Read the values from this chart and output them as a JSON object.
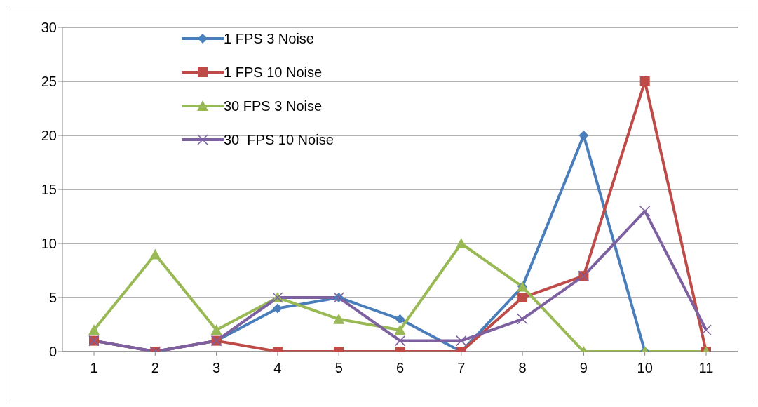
{
  "chart_data": {
    "type": "line",
    "categories": [
      "1",
      "2",
      "3",
      "4",
      "5",
      "6",
      "7",
      "8",
      "9",
      "10",
      "11"
    ],
    "series": [
      {
        "name": "1 FPS 3 Noise",
        "color": "#4a7ebb",
        "marker": "diamond",
        "values": [
          1,
          0,
          1,
          4,
          5,
          3,
          0,
          6,
          20,
          0,
          null
        ]
      },
      {
        "name": "1 FPS 10 Noise",
        "color": "#be4b48",
        "marker": "square",
        "values": [
          1,
          0,
          1,
          0,
          0,
          0,
          0,
          5,
          7,
          25,
          0
        ]
      },
      {
        "name": "30 FPS 3 Noise",
        "color": "#98b954",
        "marker": "triangle",
        "values": [
          2,
          9,
          2,
          5,
          3,
          2,
          10,
          6,
          0,
          0,
          0
        ]
      },
      {
        "name": "30  FPS 10 Noise",
        "color": "#7d60a0",
        "marker": "cross",
        "values": [
          1,
          0,
          1,
          5,
          5,
          1,
          1,
          3,
          7,
          13,
          2
        ]
      }
    ],
    "ylim": [
      0,
      30
    ],
    "yticks": [
      0,
      5,
      10,
      15,
      20,
      25,
      30
    ],
    "grid": "y",
    "legend": "top left",
    "line_style": "solid"
  }
}
